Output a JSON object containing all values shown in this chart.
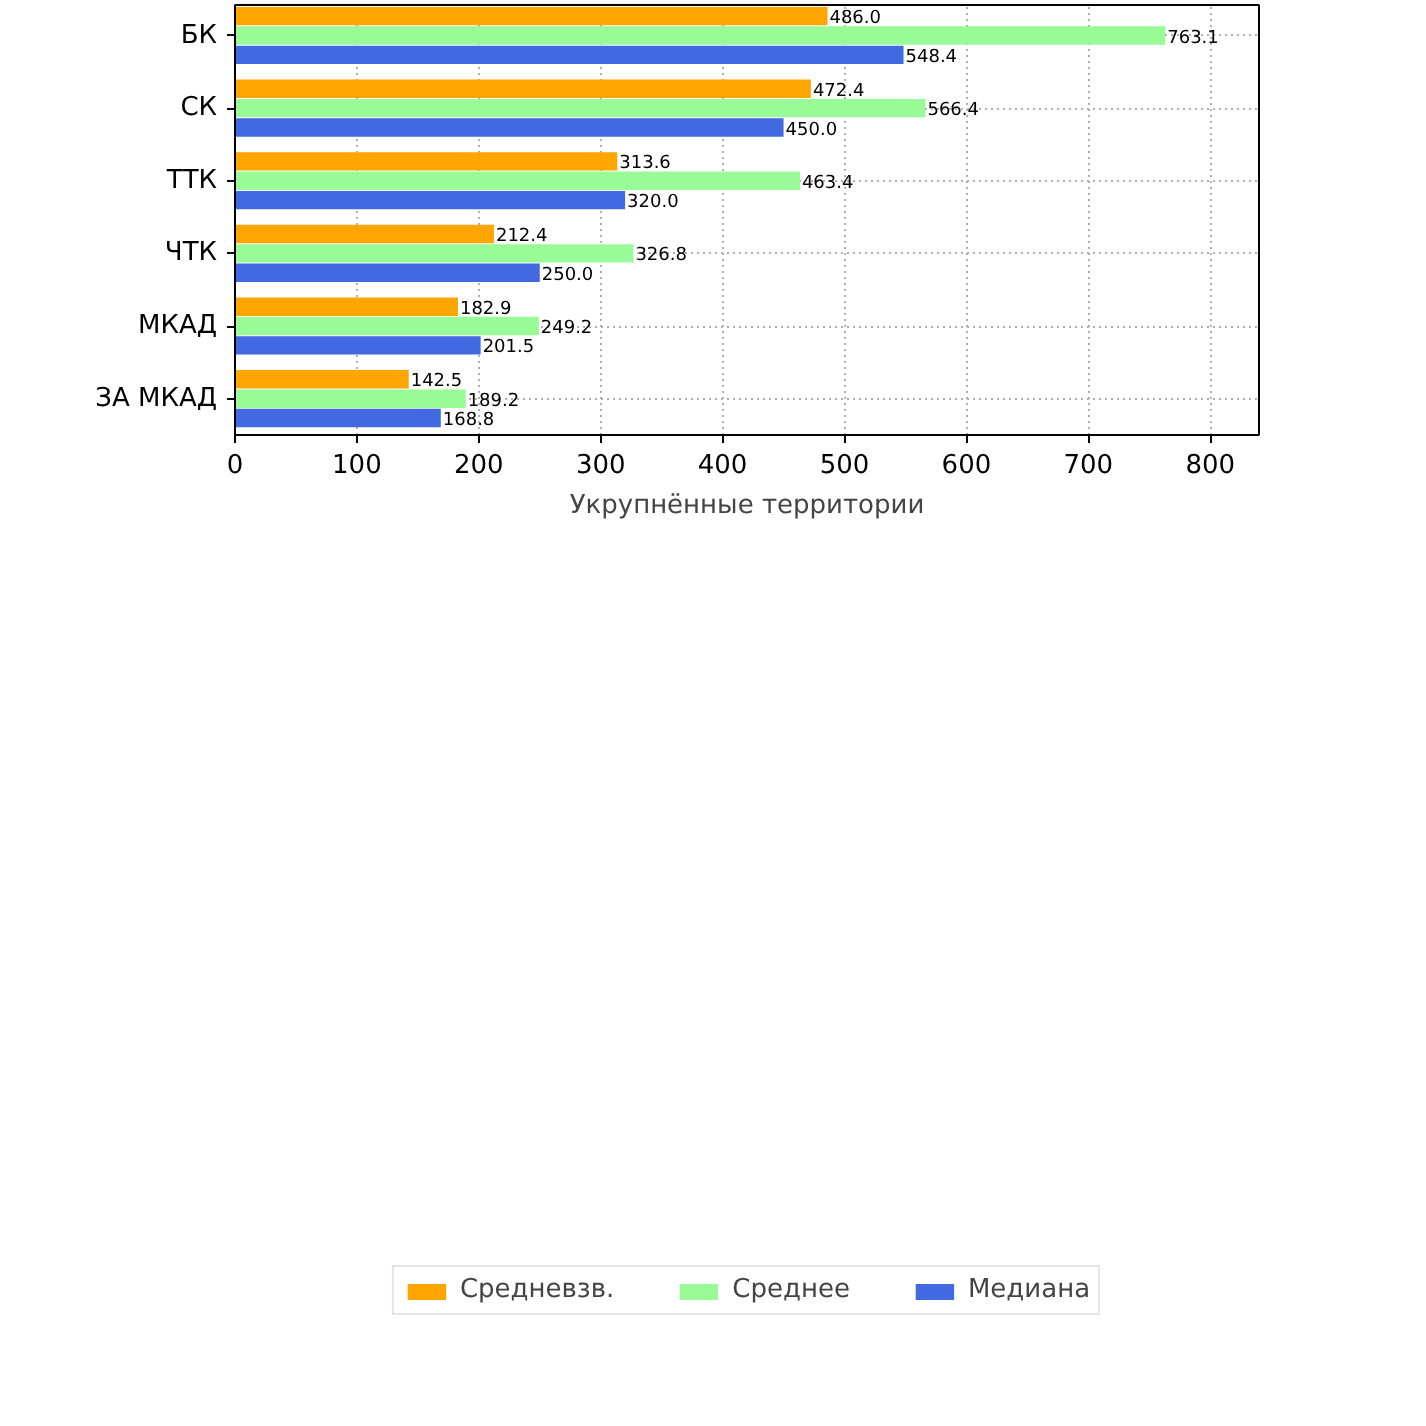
{
  "chart_data": {
    "type": "bar",
    "orientation": "horizontal",
    "xlabel": "Укрупнённые территории",
    "categories": [
      "БК",
      "СК",
      "ТТК",
      "ЧТК",
      "МКАД",
      "ЗА МКАД"
    ],
    "series": [
      {
        "name": "Средневзв.",
        "color": "#ffa500",
        "values": [
          486.0,
          472.4,
          313.6,
          212.4,
          182.9,
          142.5
        ],
        "value_labels": [
          "486.0",
          "472.4",
          "313.6",
          "212.4",
          "182.9",
          "142.5"
        ]
      },
      {
        "name": "Среднее",
        "color": "#98fb98",
        "values": [
          763.1,
          566.4,
          463.4,
          326.8,
          249.2,
          189.2
        ],
        "value_labels": [
          "763.1",
          "566.4",
          "463.4",
          "326.8",
          "249.2",
          "189.2"
        ]
      },
      {
        "name": "Медиана",
        "color": "#4169e1",
        "values": [
          548.4,
          450.0,
          320.0,
          250.0,
          201.5,
          168.8
        ],
        "value_labels": [
          "548.4",
          "450.0",
          "320.0",
          "250.0",
          "201.5",
          "168.8"
        ]
      }
    ],
    "xlim": [
      0,
      840
    ],
    "xticks": [
      0,
      100,
      200,
      300,
      400,
      500,
      600,
      700,
      800
    ],
    "grid": true,
    "legend": "bottom"
  }
}
